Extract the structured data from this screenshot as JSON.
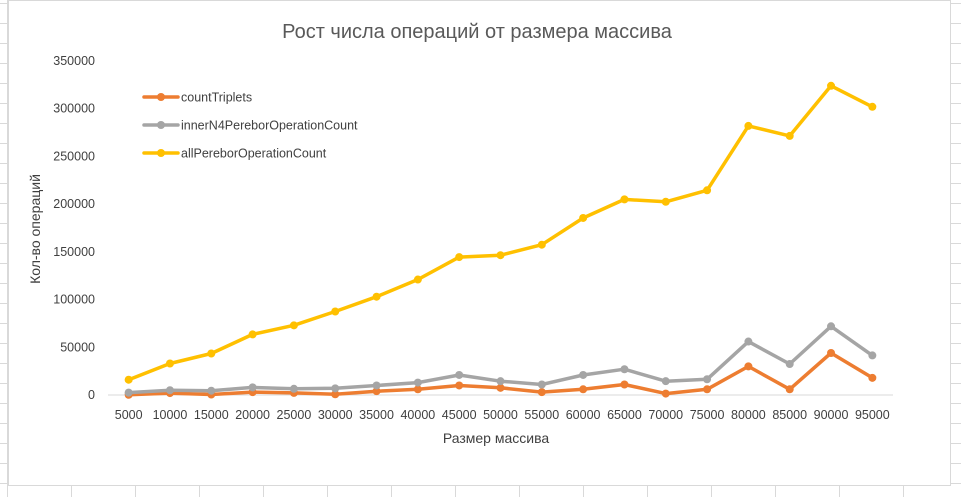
{
  "chart_data": {
    "type": "line",
    "title": "Рост числа операций от размера массива",
    "xlabel": "Размер массива",
    "ylabel": "Кол-во операций",
    "ylim": [
      0,
      350000
    ],
    "yticks": [
      0,
      50000,
      100000,
      150000,
      200000,
      250000,
      300000,
      350000
    ],
    "grid": false,
    "legend_position": "top-left",
    "categories": [
      "5000",
      "10000",
      "15000",
      "20000",
      "25000",
      "30000",
      "35000",
      "40000",
      "45000",
      "50000",
      "55000",
      "60000",
      "65000",
      "70000",
      "75000",
      "80000",
      "85000",
      "90000",
      "95000"
    ],
    "series": [
      {
        "name": "countTriplets",
        "color": "#ED7D31",
        "values": [
          200,
          2000,
          500,
          3000,
          2200,
          800,
          4000,
          6000,
          10000,
          7500,
          3000,
          6000,
          11000,
          1500,
          6000,
          30000,
          6000,
          44000,
          18000
        ]
      },
      {
        "name": "innerN4PereborOperationCount",
        "color": "#A5A5A5",
        "values": [
          2500,
          5000,
          4500,
          8000,
          6500,
          7000,
          10000,
          13000,
          21000,
          14500,
          11000,
          21000,
          27000,
          14500,
          16500,
          56000,
          32500,
          72000,
          41500
        ]
      },
      {
        "name": "allPereborOperationCount",
        "color": "#FFC000",
        "values": [
          16000,
          33000,
          43500,
          63500,
          73000,
          87500,
          103000,
          121000,
          144500,
          146500,
          157500,
          185500,
          205000,
          202500,
          214500,
          282000,
          271500,
          324000,
          302000
        ]
      }
    ]
  }
}
